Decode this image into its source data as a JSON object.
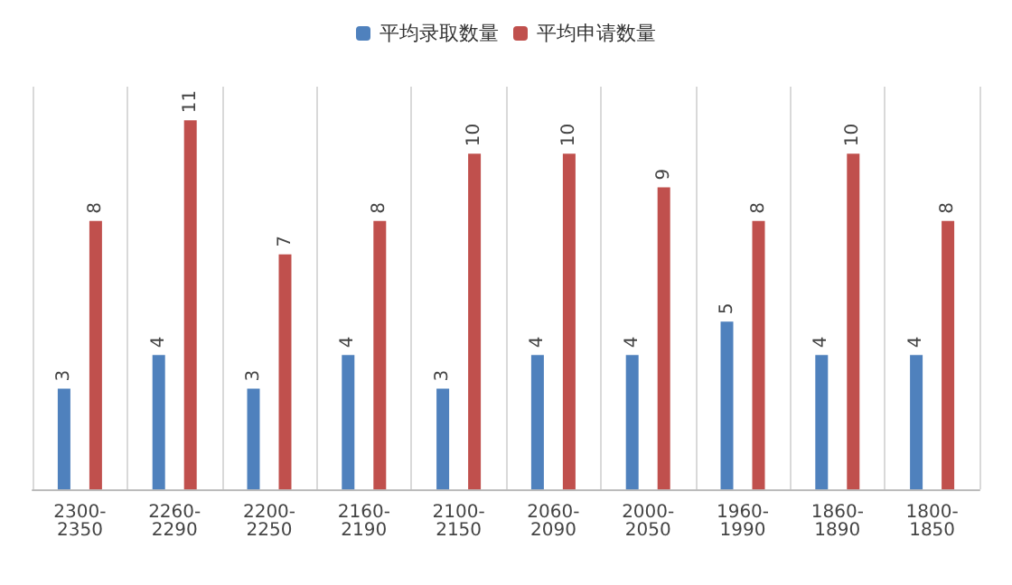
{
  "chart_data": {
    "type": "bar",
    "categories": [
      "2300-2350",
      "2260-2290",
      "2200-2250",
      "2160-2190",
      "2100-2150",
      "2060-2090",
      "2000-2050",
      "1960-1990",
      "1860-1890",
      "1800-1850"
    ],
    "series": [
      {
        "name": "平均录取数量",
        "color": "#4f81bd",
        "values": [
          3,
          4,
          3,
          4,
          3,
          4,
          4,
          5,
          4,
          4
        ]
      },
      {
        "name": "平均申请数量",
        "color": "#c0504d",
        "values": [
          8,
          11,
          7,
          8,
          10,
          10,
          9,
          8,
          10,
          8
        ]
      }
    ],
    "data_labels": true,
    "grid": "x",
    "legend": "top"
  }
}
